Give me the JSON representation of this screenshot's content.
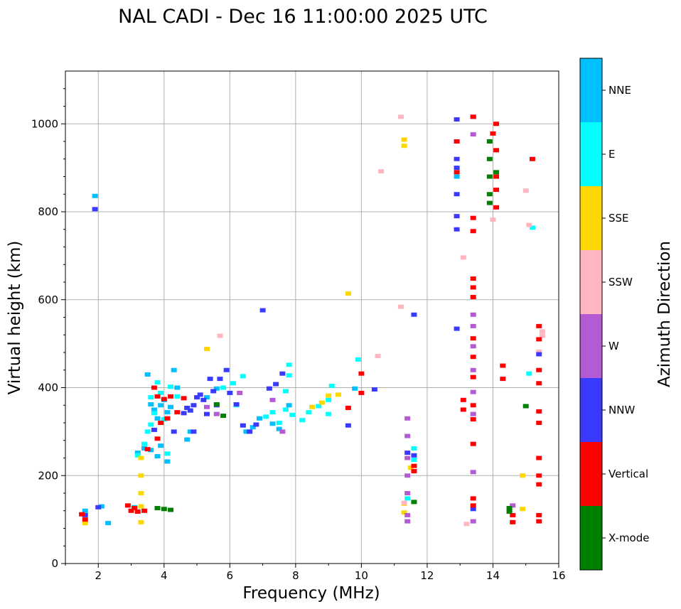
{
  "chart_data": {
    "type": "scatter",
    "title": "NAL CADI - Dec 16 11:00:00 2025 UTC",
    "xlabel": "Frequency (MHz)",
    "ylabel": "Virtual height (km)",
    "xlim": [
      1,
      16
    ],
    "ylim": [
      0,
      1120
    ],
    "xticks": [
      2,
      4,
      6,
      8,
      10,
      12,
      14,
      16
    ],
    "yticks": [
      0,
      200,
      400,
      600,
      800,
      1000
    ],
    "grid": true,
    "colorbar": {
      "label": "Azimuth Direction",
      "categories": [
        {
          "name": "X-mode",
          "color": "#008000"
        },
        {
          "name": "Vertical",
          "color": "#ff0000"
        },
        {
          "name": "NNW",
          "color": "#3a3aff"
        },
        {
          "name": "W",
          "color": "#b45ad2"
        },
        {
          "name": "SSW",
          "color": "#ffb6c1"
        },
        {
          "name": "SSE",
          "color": "#ffd700"
        },
        {
          "name": "E",
          "color": "#00ffff"
        },
        {
          "name": "NNE",
          "color": "#00bfff"
        }
      ]
    },
    "series": [
      {
        "name": "NNE",
        "points": [
          [
            1.9,
            836
          ],
          [
            3.5,
            430
          ],
          [
            3.6,
            362
          ],
          [
            3.7,
            350
          ],
          [
            3.8,
            330
          ],
          [
            3.9,
            360
          ],
          [
            4.0,
            372
          ],
          [
            4.1,
            344
          ],
          [
            4.2,
            356
          ],
          [
            4.3,
            440
          ],
          [
            4.4,
            400
          ],
          [
            4.7,
            282
          ],
          [
            4.8,
            300
          ],
          [
            5.3,
            378
          ],
          [
            5.6,
            398
          ],
          [
            6.5,
            300
          ],
          [
            6.7,
            310
          ],
          [
            6.9,
            330
          ],
          [
            7.3,
            318
          ],
          [
            7.5,
            306
          ],
          [
            2.3,
            92
          ],
          [
            3.2,
            252
          ],
          [
            3.4,
            262
          ],
          [
            3.6,
            258
          ],
          [
            3.8,
            244
          ],
          [
            3.9,
            268
          ],
          [
            4.1,
            232
          ],
          [
            2.1,
            130
          ],
          [
            1.6,
            120
          ],
          [
            3.1,
            128
          ],
          [
            12.9,
            880
          ],
          [
            7.8,
            360
          ],
          [
            9.8,
            398
          ]
        ]
      },
      {
        "name": "E",
        "points": [
          [
            3.6,
            378
          ],
          [
            3.7,
            342
          ],
          [
            3.8,
            412
          ],
          [
            3.9,
            388
          ],
          [
            4.0,
            328
          ],
          [
            4.2,
            402
          ],
          [
            4.4,
            380
          ],
          [
            3.5,
            300
          ],
          [
            3.6,
            316
          ],
          [
            4.1,
            250
          ],
          [
            3.4,
            272
          ],
          [
            3.2,
            246
          ],
          [
            7.1,
            334
          ],
          [
            7.3,
            344
          ],
          [
            7.5,
            320
          ],
          [
            7.7,
            350
          ],
          [
            7.8,
            428
          ],
          [
            7.8,
            452
          ],
          [
            7.7,
            392
          ],
          [
            7.9,
            338
          ],
          [
            8.2,
            326
          ],
          [
            8.4,
            344
          ],
          [
            8.7,
            358
          ],
          [
            9.0,
            340
          ],
          [
            9.0,
            372
          ],
          [
            9.1,
            404
          ],
          [
            9.9,
            464
          ],
          [
            11.6,
            262
          ],
          [
            11.6,
            236
          ],
          [
            11.4,
            148
          ],
          [
            15.1,
            432
          ],
          [
            15.2,
            764
          ],
          [
            6.4,
            426
          ],
          [
            6.2,
            360
          ],
          [
            6.1,
            410
          ],
          [
            5.8,
            400
          ]
        ]
      },
      {
        "name": "SSE",
        "points": [
          [
            3.3,
            240
          ],
          [
            3.3,
            200
          ],
          [
            3.3,
            160
          ],
          [
            3.3,
            130
          ],
          [
            3.3,
            94
          ],
          [
            8.8,
            366
          ],
          [
            9.0,
            382
          ],
          [
            9.3,
            384
          ],
          [
            9.6,
            614
          ],
          [
            11.3,
            964
          ],
          [
            11.3,
            950
          ],
          [
            11.3,
            136
          ],
          [
            11.3,
            116
          ],
          [
            11.5,
            218
          ],
          [
            14.9,
            200
          ],
          [
            14.9,
            124
          ],
          [
            1.6,
            92
          ],
          [
            5.3,
            488
          ],
          [
            8.5,
            356
          ]
        ]
      },
      {
        "name": "SSW",
        "points": [
          [
            10.6,
            892
          ],
          [
            10.5,
            472
          ],
          [
            11.2,
            1016
          ],
          [
            11.2,
            584
          ],
          [
            11.3,
            138
          ],
          [
            13.1,
            696
          ],
          [
            13.2,
            90
          ],
          [
            15.0,
            848
          ],
          [
            15.1,
            770
          ],
          [
            15.5,
            528
          ],
          [
            15.5,
            518
          ],
          [
            15.4,
            482
          ],
          [
            5.7,
            518
          ],
          [
            14.0,
            782
          ]
        ]
      },
      {
        "name": "W",
        "points": [
          [
            11.4,
            330
          ],
          [
            11.4,
            290
          ],
          [
            11.4,
            240
          ],
          [
            11.4,
            200
          ],
          [
            11.4,
            160
          ],
          [
            11.4,
            110
          ],
          [
            11.4,
            96
          ],
          [
            13.4,
            566
          ],
          [
            13.4,
            540
          ],
          [
            13.4,
            494
          ],
          [
            13.4,
            440
          ],
          [
            13.4,
            390
          ],
          [
            13.4,
            340
          ],
          [
            13.4,
            208
          ],
          [
            13.4,
            96
          ],
          [
            13.4,
            976
          ],
          [
            14.6,
            132
          ],
          [
            6.3,
            388
          ],
          [
            6.6,
            300
          ],
          [
            5.6,
            340
          ],
          [
            5.3,
            356
          ],
          [
            7.3,
            372
          ],
          [
            7.6,
            300
          ]
        ]
      },
      {
        "name": "NNW",
        "points": [
          [
            1.9,
            806
          ],
          [
            4.6,
            342
          ],
          [
            4.7,
            354
          ],
          [
            4.8,
            348
          ],
          [
            4.9,
            360
          ],
          [
            5.0,
            378
          ],
          [
            5.1,
            384
          ],
          [
            5.2,
            372
          ],
          [
            5.3,
            340
          ],
          [
            5.4,
            420
          ],
          [
            5.5,
            392
          ],
          [
            5.6,
            360
          ],
          [
            5.7,
            420
          ],
          [
            5.9,
            440
          ],
          [
            6.0,
            388
          ],
          [
            6.2,
            362
          ],
          [
            6.4,
            314
          ],
          [
            6.6,
            300
          ],
          [
            6.8,
            316
          ],
          [
            7.0,
            576
          ],
          [
            7.2,
            398
          ],
          [
            7.4,
            408
          ],
          [
            7.6,
            432
          ],
          [
            12.9,
            1010
          ],
          [
            12.9,
            960
          ],
          [
            12.9,
            920
          ],
          [
            12.9,
            900
          ],
          [
            12.9,
            840
          ],
          [
            12.9,
            790
          ],
          [
            12.9,
            760
          ],
          [
            12.9,
            534
          ],
          [
            13.4,
            1016
          ],
          [
            13.4,
            124
          ],
          [
            15.4,
            476
          ],
          [
            10.4,
            396
          ],
          [
            11.6,
            566
          ],
          [
            11.4,
            252
          ],
          [
            11.6,
            246
          ],
          [
            9.6,
            314
          ],
          [
            1.6,
            110
          ],
          [
            2.0,
            128
          ],
          [
            4.3,
            300
          ],
          [
            4.9,
            300
          ],
          [
            3.7,
            304
          ]
        ]
      },
      {
        "name": "Vertical",
        "points": [
          [
            3.7,
            400
          ],
          [
            3.8,
            380
          ],
          [
            3.9,
            320
          ],
          [
            4.0,
            374
          ],
          [
            4.1,
            330
          ],
          [
            4.2,
            380
          ],
          [
            4.4,
            344
          ],
          [
            4.6,
            376
          ],
          [
            3.5,
            260
          ],
          [
            3.8,
            284
          ],
          [
            1.5,
            112
          ],
          [
            1.6,
            100
          ],
          [
            2.9,
            132
          ],
          [
            3.0,
            120
          ],
          [
            3.1,
            126
          ],
          [
            3.2,
            118
          ],
          [
            3.4,
            120
          ],
          [
            13.1,
            372
          ],
          [
            13.1,
            350
          ],
          [
            13.4,
            786
          ],
          [
            13.4,
            756
          ],
          [
            13.4,
            648
          ],
          [
            13.4,
            628
          ],
          [
            13.4,
            606
          ],
          [
            13.4,
            512
          ],
          [
            13.4,
            470
          ],
          [
            13.4,
            424
          ],
          [
            13.4,
            360
          ],
          [
            13.4,
            328
          ],
          [
            13.4,
            272
          ],
          [
            13.4,
            148
          ],
          [
            13.4,
            132
          ],
          [
            14.0,
            978
          ],
          [
            14.1,
            1000
          ],
          [
            14.1,
            940
          ],
          [
            14.1,
            880
          ],
          [
            14.1,
            850
          ],
          [
            14.1,
            810
          ],
          [
            14.3,
            450
          ],
          [
            14.3,
            420
          ],
          [
            14.6,
            110
          ],
          [
            14.6,
            94
          ],
          [
            15.2,
            920
          ],
          [
            15.4,
            540
          ],
          [
            15.4,
            510
          ],
          [
            15.4,
            440
          ],
          [
            15.4,
            410
          ],
          [
            15.4,
            346
          ],
          [
            15.4,
            320
          ],
          [
            15.4,
            240
          ],
          [
            15.4,
            200
          ],
          [
            15.4,
            180
          ],
          [
            15.4,
            110
          ],
          [
            15.4,
            96
          ],
          [
            10.0,
            432
          ],
          [
            10.0,
            388
          ],
          [
            9.6,
            354
          ],
          [
            11.6,
            210
          ],
          [
            11.6,
            222
          ],
          [
            12.9,
            890
          ],
          [
            12.9,
            960
          ],
          [
            13.4,
            1016
          ]
        ]
      },
      {
        "name": "X-mode",
        "points": [
          [
            3.8,
            126
          ],
          [
            4.0,
            124
          ],
          [
            4.2,
            122
          ],
          [
            13.9,
            960
          ],
          [
            13.9,
            920
          ],
          [
            13.9,
            880
          ],
          [
            13.9,
            840
          ],
          [
            13.9,
            820
          ],
          [
            14.1,
            890
          ],
          [
            14.5,
            118
          ],
          [
            14.5,
            126
          ],
          [
            15.0,
            358
          ],
          [
            11.6,
            140
          ],
          [
            5.6,
            362
          ],
          [
            5.8,
            336
          ]
        ]
      }
    ]
  }
}
